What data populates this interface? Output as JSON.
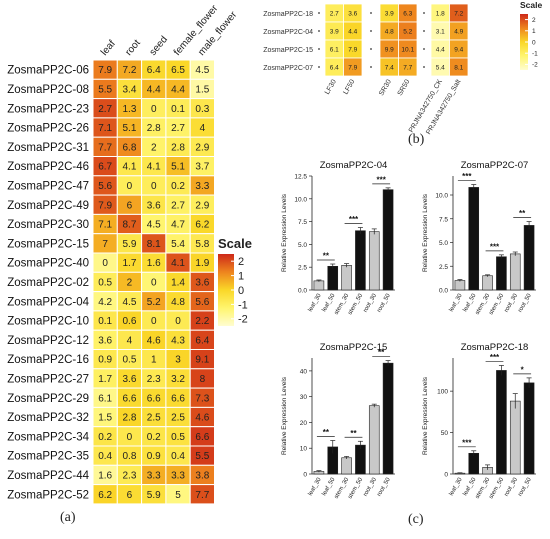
{
  "panel_labels": {
    "a": "(a)",
    "b": "(b)",
    "c": "(c)"
  },
  "chart_data": [
    {
      "type": "heatmap",
      "panel": "a",
      "columns": [
        "leaf",
        "root",
        "seed",
        "female_flower",
        "male_flower"
      ],
      "rows": [
        "ZosmaPP2C-06",
        "ZosmaPP2C-08",
        "ZosmaPP2C-23",
        "ZosmaPP2C-26",
        "ZosmaPP2C-31",
        "ZosmaPP2C-46",
        "ZosmaPP2C-47",
        "ZosmaPP2C-49",
        "ZosmaPP2C-30",
        "ZosmaPP2C-15",
        "ZosmaPP2C-40",
        "ZosmaPP2C-02",
        "ZosmaPP2C-04",
        "ZosmaPP2C-10",
        "ZosmaPP2C-12",
        "ZosmaPP2C-16",
        "ZosmaPP2C-27",
        "ZosmaPP2C-29",
        "ZosmaPP2C-32",
        "ZosmaPP2C-34",
        "ZosmaPP2C-35",
        "ZosmaPP2C-44",
        "ZosmaPP2C-52"
      ],
      "values": [
        [
          "7.9",
          "7.2",
          "6.4",
          "6.5",
          "4.5"
        ],
        [
          "5.5",
          "3.4",
          "4.4",
          "4.4",
          "1.5"
        ],
        [
          "2.7",
          "1.3",
          "0",
          "0.1",
          "0.3"
        ],
        [
          "7.1",
          "5.1",
          "2.8",
          "2.7",
          "4"
        ],
        [
          "7.7",
          "6.8",
          "2",
          "2.8",
          "2.9"
        ],
        [
          "6.7",
          "4.1",
          "4.1",
          "5.1",
          "3.7"
        ],
        [
          "5.6",
          "0",
          "0",
          "0.2",
          "3.3"
        ],
        [
          "7.9",
          "6",
          "3.6",
          "2.7",
          "2.9"
        ],
        [
          "7.1",
          "8.7",
          "4.5",
          "4.7",
          "6.2"
        ],
        [
          "7",
          "5.9",
          "8.1",
          "5.4",
          "5.8"
        ],
        [
          "0",
          "1.7",
          "1.6",
          "4.1",
          "1.9"
        ],
        [
          "0.5",
          "2",
          "0",
          "1.4",
          "3.6"
        ],
        [
          "4.2",
          "4.5",
          "5.2",
          "4.8",
          "5.6"
        ],
        [
          "0.1",
          "0.6",
          "0",
          "0",
          "2.2"
        ],
        [
          "3.6",
          "4",
          "4.6",
          "4.3",
          "6.4"
        ],
        [
          "0.9",
          "0.5",
          "1",
          "3",
          "9.1"
        ],
        [
          "1.7",
          "3.6",
          "2.3",
          "3.2",
          "8"
        ],
        [
          "6.1",
          "6.6",
          "6.6",
          "6.6",
          "7.3"
        ],
        [
          "1.5",
          "2.8",
          "2.5",
          "2.5",
          "4.6"
        ],
        [
          "0.2",
          "0",
          "0.2",
          "0.5",
          "6.6"
        ],
        [
          "0.4",
          "0.8",
          "0.9",
          "0.4",
          "5.5"
        ],
        [
          "1.6",
          "2.3",
          "3.3",
          "3.3",
          "3.8"
        ],
        [
          "6.2",
          "6",
          "5.9",
          "5",
          "7.7"
        ]
      ],
      "scale": {
        "title": "Scale",
        "ticks": [
          "2",
          "1",
          "0",
          "-1",
          "-2"
        ]
      }
    },
    {
      "type": "heatmap",
      "panel": "b",
      "columns": [
        "LF30",
        "LF50",
        "SR30",
        "SR50",
        "PRJNA342750_CK",
        "PRJNA342750_Salt"
      ],
      "rows": [
        "ZosmaPP2C-18",
        "ZosmaPP2C-04",
        "ZosmaPP2C-15",
        "ZosmaPP2C-07"
      ],
      "values": [
        [
          "2.7",
          "3.6",
          "3.9",
          "6.3",
          "1.8",
          "7.2"
        ],
        [
          "3.9",
          "4.4",
          "4.8",
          "5.2",
          "3.1",
          "4.9"
        ],
        [
          "6.1",
          "7.9",
          "9.9",
          "10.1",
          "4.4",
          "9.4"
        ],
        [
          "6.4",
          "7.9",
          "7.4",
          "7.7",
          "5.4",
          "8.1"
        ]
      ],
      "scale": {
        "title": "Scale",
        "ticks": [
          "2",
          "1",
          "0",
          "-1",
          "-2"
        ]
      }
    },
    {
      "type": "bar",
      "panel": "c",
      "title": "ZosmaPP2C-04",
      "ylabel": "Relative Expression Levels",
      "categories": [
        "leaf_30",
        "leaf_50",
        "stem_30",
        "stem_50",
        "root_30",
        "root_50"
      ],
      "values": [
        1,
        2.6,
        2.7,
        6.5,
        6.4,
        11
      ],
      "errors": [
        0.1,
        0.25,
        0.2,
        0.35,
        0.3,
        0.2
      ],
      "ylim": [
        0,
        12.5
      ],
      "yticks": [
        "0.0",
        "2.5",
        "5.0",
        "7.5",
        "10.0",
        "12.5"
      ],
      "significance": [
        "**",
        "***",
        "***"
      ]
    },
    {
      "type": "bar",
      "panel": "c",
      "title": "ZosmaPP2C-07",
      "ylabel": "Relative Expression Levels",
      "categories": [
        "leaf_30",
        "leaf_50",
        "stem_30",
        "stem_50",
        "root_30",
        "root_50"
      ],
      "values": [
        1,
        10.8,
        1.5,
        3.5,
        3.8,
        6.8
      ],
      "errors": [
        0.1,
        0.3,
        0.1,
        0.2,
        0.2,
        0.4
      ],
      "ylim": [
        0,
        12
      ],
      "yticks": [
        "0.0",
        "2.5",
        "5.0",
        "7.5",
        "10.0"
      ],
      "significance": [
        "***",
        "***",
        "**"
      ]
    },
    {
      "type": "bar",
      "panel": "c",
      "title": "ZosmaPP2C-15",
      "ylabel": "Relative Expression Levels",
      "categories": [
        "leaf_30",
        "leaf_50",
        "stem_30",
        "stem_50",
        "root_30",
        "root_50"
      ],
      "values": [
        1,
        10.5,
        6.3,
        11.2,
        26.5,
        43
      ],
      "errors": [
        0.3,
        2.5,
        0.5,
        1.5,
        0.6,
        1.0
      ],
      "ylim": [
        0,
        45
      ],
      "yticks": [
        "0",
        "10",
        "20",
        "30",
        "40"
      ],
      "significance": [
        "**",
        "**",
        "**"
      ]
    },
    {
      "type": "bar",
      "panel": "c",
      "title": "ZosmaPP2C-18",
      "ylabel": "Relative Expression Levels",
      "categories": [
        "leaf_30",
        "leaf_50",
        "stem_30",
        "stem_50",
        "root_30",
        "root_50"
      ],
      "values": [
        1,
        25,
        8,
        125,
        88,
        110
      ],
      "errors": [
        0.5,
        3,
        3,
        6,
        9,
        6
      ],
      "ylim": [
        0,
        140
      ],
      "yticks": [
        "0",
        "50",
        "100"
      ],
      "significance": [
        "***",
        "***",
        "*"
      ]
    }
  ]
}
